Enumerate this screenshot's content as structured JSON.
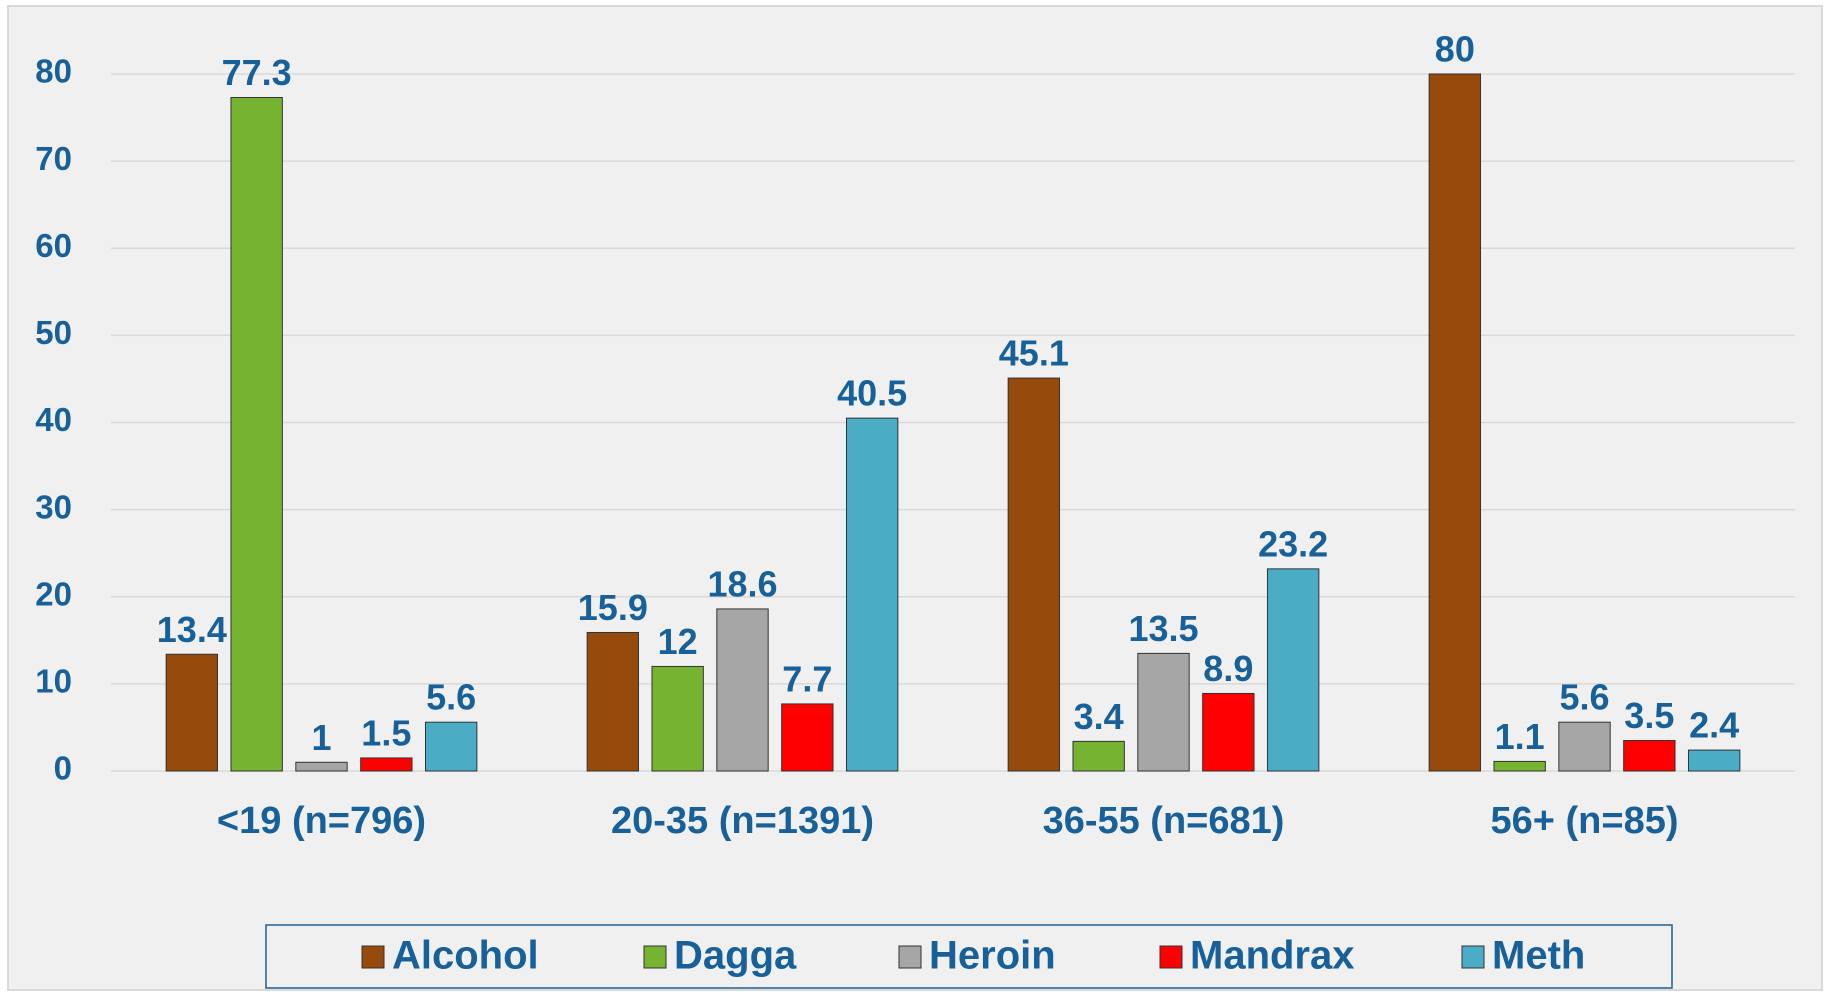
{
  "chart_data": {
    "type": "bar",
    "categories": [
      "<19 (n=796)",
      "20-35 (n=1391)",
      "36-55 (n=681)",
      "56+ (n=85)"
    ],
    "series": [
      {
        "name": "Alcohol",
        "color": "#964b0c",
        "values": [
          13.4,
          15.9,
          45.1,
          80
        ]
      },
      {
        "name": "Dagga",
        "color": "#76b330",
        "values": [
          77.3,
          12,
          3.4,
          1.1
        ]
      },
      {
        "name": "Heroin",
        "color": "#a6a6a6",
        "values": [
          1,
          18.6,
          13.5,
          5.6
        ]
      },
      {
        "name": "Mandrax",
        "color": "#ff0000",
        "values": [
          1.5,
          7.7,
          8.9,
          3.5
        ]
      },
      {
        "name": "Meth",
        "color": "#4bacc6",
        "values": [
          5.6,
          40.5,
          23.2,
          2.4
        ]
      }
    ],
    "ylim": [
      0,
      80
    ],
    "yticks": [
      0,
      10,
      20,
      30,
      40,
      50,
      60,
      70,
      80
    ],
    "grid": true,
    "legend": "bottom"
  }
}
